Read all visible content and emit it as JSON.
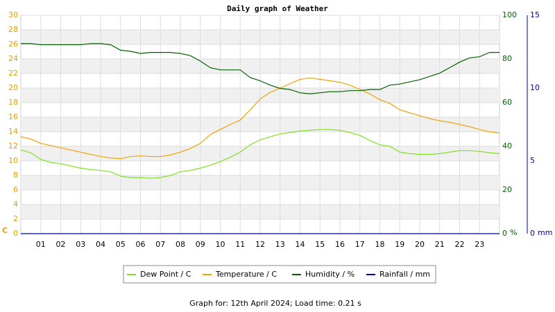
{
  "chart_data": {
    "type": "line",
    "title": "Daily graph of Weather",
    "x": [
      0,
      0.5,
      1,
      1.5,
      2,
      2.5,
      3,
      3.5,
      4,
      4.5,
      5,
      5.5,
      6,
      6.5,
      7,
      7.5,
      8,
      8.5,
      9,
      9.5,
      10,
      10.5,
      11,
      11.5,
      12,
      12.5,
      13,
      13.5,
      14,
      14.5,
      15,
      15.5,
      16,
      16.5,
      17,
      17.5,
      18,
      18.5,
      19,
      19.5,
      20,
      20.5,
      21,
      21.5,
      22,
      22.5,
      23,
      23.5,
      24
    ],
    "xlim": [
      0,
      24
    ],
    "xticks": [
      {
        "value": 1,
        "label": "01"
      },
      {
        "value": 2,
        "label": "02"
      },
      {
        "value": 3,
        "label": "03"
      },
      {
        "value": 4,
        "label": "04"
      },
      {
        "value": 5,
        "label": "05"
      },
      {
        "value": 6,
        "label": "06"
      },
      {
        "value": 7,
        "label": "07"
      },
      {
        "value": 8,
        "label": "08"
      },
      {
        "value": 9,
        "label": "09"
      },
      10,
      11,
      12,
      13,
      14,
      15,
      16,
      17,
      18,
      19,
      20,
      21,
      22,
      23
    ],
    "ylim": [
      0,
      30
    ],
    "yticks": [
      0,
      2,
      4,
      6,
      8,
      10,
      12,
      14,
      16,
      18,
      20,
      22,
      24,
      26,
      28,
      30
    ],
    "y_label": "C",
    "y2lim": [
      0,
      100
    ],
    "y2ticks": [
      0,
      20,
      40,
      60,
      80,
      100
    ],
    "y2_label": "%",
    "y3lim": [
      0,
      15
    ],
    "y3ticks": [
      0,
      5,
      10,
      15
    ],
    "y3_label": "mm",
    "grid": true,
    "series": [
      {
        "name": "Dew Point / C",
        "color": "#80e020",
        "values": [
          11.5,
          11.1,
          10.2,
          9.8,
          9.6,
          9.3,
          9.0,
          8.8,
          8.7,
          8.5,
          7.9,
          7.7,
          7.7,
          7.6,
          7.7,
          8.0,
          8.5,
          8.7,
          9.0,
          9.4,
          9.9,
          10.5,
          11.2,
          12.2,
          12.9,
          13.3,
          13.7,
          13.9,
          14.1,
          14.2,
          14.3,
          14.3,
          14.2,
          13.9,
          13.5,
          12.8,
          12.2,
          12.0,
          11.2,
          11.0,
          10.9,
          10.9,
          11.0,
          11.2,
          11.4,
          11.4,
          11.3,
          11.1,
          11.0
        ]
      },
      {
        "name": "Temperature / C",
        "color": "#f0a000",
        "values": [
          13.3,
          13.0,
          12.4,
          12.1,
          11.8,
          11.5,
          11.2,
          10.9,
          10.6,
          10.4,
          10.3,
          10.6,
          10.7,
          10.6,
          10.6,
          10.8,
          11.2,
          11.7,
          12.4,
          13.6,
          14.3,
          15.0,
          15.6,
          17.0,
          18.5,
          19.4,
          20.0,
          20.6,
          21.2,
          21.4,
          21.2,
          21.0,
          20.8,
          20.4,
          19.8,
          19.2,
          18.4,
          17.9,
          17.0,
          16.6,
          16.2,
          15.8,
          15.5,
          15.3,
          15.0,
          14.7,
          14.3,
          14.0,
          13.8
        ]
      },
      {
        "name": "Humidity / %",
        "color": "#006000",
        "axis": "y2",
        "values": [
          87,
          87,
          86.5,
          86.5,
          86.5,
          86.5,
          86.5,
          87,
          87,
          86.5,
          84,
          83.5,
          82.5,
          83,
          83,
          83,
          82.5,
          81.5,
          79,
          76,
          75,
          75,
          75,
          71.5,
          70,
          68,
          66.5,
          66,
          64.5,
          64,
          64.5,
          65,
          65,
          65.5,
          65.5,
          66,
          66,
          68,
          68.5,
          69.5,
          70.5,
          72,
          73.5,
          76,
          78.5,
          80.5,
          81,
          83,
          83
        ]
      },
      {
        "name": "Rainfall / mm",
        "color": "#0000a0",
        "axis": "y3",
        "values": [
          0,
          0,
          0,
          0,
          0,
          0,
          0,
          0,
          0,
          0,
          0,
          0,
          0,
          0,
          0,
          0,
          0,
          0,
          0,
          0,
          0,
          0,
          0,
          0,
          0,
          0,
          0,
          0,
          0,
          0,
          0,
          0,
          0,
          0,
          0,
          0,
          0,
          0,
          0,
          0,
          0,
          0,
          0,
          0,
          0,
          0,
          0,
          0,
          0
        ]
      }
    ],
    "footer": "Graph for: 12th April 2024; Load time: 0.21 s"
  }
}
